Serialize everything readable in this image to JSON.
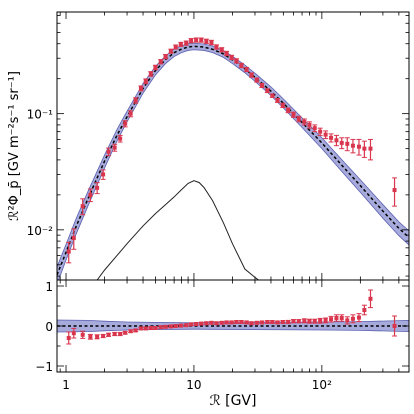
{
  "colors": {
    "data_points": "#d9364e",
    "model_band": "#8a8fd0",
    "model_line": "#000000",
    "component_line": "#222222",
    "axis": "#000000"
  },
  "chart_data": [
    {
      "type": "line",
      "panel": "main",
      "title": "",
      "xlabel": "",
      "ylabel": "ℛ²Φ_p̄ [GV m⁻²s⁻¹ sr⁻¹]",
      "xscale": "log",
      "yscale": "log",
      "xlim": [
        0.85,
        480
      ],
      "ylim": [
        0.0037,
        0.75
      ],
      "ytick_labels": [
        "10⁻²",
        "10⁻¹"
      ],
      "yticks": [
        0.01,
        0.1
      ],
      "grid": false,
      "series": [
        {
          "kind": "band",
          "x": [
            0.85,
            1.0,
            1.2,
            1.5,
            2.0,
            2.5,
            3.0,
            4.0,
            5.0,
            6.0,
            7.0,
            8.0,
            9.0,
            10.0,
            12.0,
            14.0,
            17.0,
            20.0,
            25.0,
            30.0,
            40.0,
            50.0,
            70.0,
            100.0,
            150.0,
            200.0,
            300.0,
            400.0,
            480.0
          ],
          "lower": [
            0.0034,
            0.0055,
            0.0092,
            0.0165,
            0.034,
            0.058,
            0.085,
            0.15,
            0.215,
            0.27,
            0.31,
            0.335,
            0.35,
            0.355,
            0.35,
            0.335,
            0.305,
            0.27,
            0.225,
            0.19,
            0.143,
            0.112,
            0.076,
            0.05,
            0.03,
            0.021,
            0.0126,
            0.0089,
            0.0074
          ],
          "upper": [
            0.0048,
            0.0075,
            0.0125,
            0.022,
            0.044,
            0.073,
            0.105,
            0.182,
            0.255,
            0.315,
            0.36,
            0.385,
            0.4,
            0.405,
            0.398,
            0.382,
            0.35,
            0.312,
            0.262,
            0.223,
            0.17,
            0.134,
            0.092,
            0.062,
            0.038,
            0.027,
            0.0165,
            0.0117,
            0.0098
          ]
        },
        {
          "kind": "line",
          "style": "dashed",
          "x": [
            0.85,
            1.0,
            1.2,
            1.5,
            2.0,
            2.5,
            3.0,
            4.0,
            5.0,
            6.0,
            7.0,
            8.0,
            9.0,
            10.0,
            12.0,
            14.0,
            17.0,
            20.0,
            25.0,
            30.0,
            40.0,
            50.0,
            70.0,
            100.0,
            150.0,
            200.0,
            300.0,
            400.0,
            480.0
          ],
          "y": [
            0.0041,
            0.0064,
            0.0107,
            0.019,
            0.039,
            0.065,
            0.094,
            0.165,
            0.235,
            0.292,
            0.335,
            0.36,
            0.375,
            0.38,
            0.374,
            0.358,
            0.327,
            0.29,
            0.243,
            0.206,
            0.156,
            0.123,
            0.084,
            0.056,
            0.034,
            0.024,
            0.0145,
            0.0103,
            0.0086
          ]
        },
        {
          "kind": "line",
          "style": "solid",
          "x": [
            1.75,
            2.0,
            2.5,
            3.0,
            4.0,
            5.0,
            6.0,
            7.0,
            8.0,
            9.0,
            10.0,
            11.0,
            12.0,
            14.0,
            17.0,
            20.0,
            25.0,
            30.0,
            32.0
          ],
          "y": [
            0.0037,
            0.0045,
            0.006,
            0.0076,
            0.0108,
            0.0138,
            0.0165,
            0.0192,
            0.0222,
            0.0251,
            0.0265,
            0.0255,
            0.0231,
            0.0178,
            0.0115,
            0.0076,
            0.0046,
            0.0039,
            0.0037
          ]
        },
        {
          "kind": "points",
          "x": [
            1.05,
            1.15,
            1.35,
            1.55,
            1.75,
            1.95,
            2.15,
            2.4,
            2.65,
            2.9,
            3.2,
            3.5,
            3.85,
            4.2,
            4.6,
            5.0,
            5.5,
            6.0,
            6.6,
            7.2,
            7.9,
            8.7,
            9.5,
            10.4,
            11.4,
            12.5,
            13.7,
            15.0,
            16.5,
            18.0,
            19.7,
            21.5,
            23.5,
            25.8,
            28.2,
            31.0,
            34.0,
            37.5,
            41.0,
            45.0,
            49.5,
            54.5,
            60.0,
            66.0,
            73.0,
            80.0,
            88.0,
            97.0,
            107.0,
            118.0,
            130.0,
            143.0,
            158.0,
            175.0,
            195.0,
            215.0,
            240.0,
            370.0
          ],
          "y": [
            0.0065,
            0.0085,
            0.016,
            0.02,
            0.023,
            0.03,
            0.047,
            0.051,
            0.061,
            0.082,
            0.1,
            0.13,
            0.165,
            0.19,
            0.22,
            0.25,
            0.28,
            0.31,
            0.345,
            0.375,
            0.395,
            0.405,
            0.425,
            0.43,
            0.43,
            0.42,
            0.41,
            0.375,
            0.355,
            0.33,
            0.305,
            0.285,
            0.26,
            0.24,
            0.215,
            0.195,
            0.175,
            0.158,
            0.143,
            0.13,
            0.118,
            0.107,
            0.098,
            0.09,
            0.085,
            0.08,
            0.075,
            0.07,
            0.066,
            0.062,
            0.059,
            0.056,
            0.055,
            0.053,
            0.052,
            0.05,
            0.05,
            0.022
          ],
          "yerr": [
            0.0013,
            0.0017,
            0.0025,
            0.0025,
            0.0025,
            0.0028,
            0.0035,
            0.0035,
            0.004,
            0.005,
            0.006,
            0.007,
            0.008,
            0.009,
            0.01,
            0.011,
            0.012,
            0.013,
            0.014,
            0.015,
            0.016,
            0.017,
            0.018,
            0.018,
            0.018,
            0.018,
            0.018,
            0.016,
            0.015,
            0.014,
            0.013,
            0.012,
            0.011,
            0.01,
            0.009,
            0.008,
            0.007,
            0.006,
            0.005,
            0.005,
            0.005,
            0.005,
            0.005,
            0.005,
            0.005,
            0.005,
            0.005,
            0.005,
            0.005,
            0.005,
            0.006,
            0.006,
            0.007,
            0.007,
            0.008,
            0.008,
            0.01,
            0.006
          ]
        }
      ]
    },
    {
      "type": "scatter",
      "panel": "residual",
      "title": "",
      "xlabel": "ℛ [GV]",
      "ylabel": "",
      "xscale": "log",
      "yscale": "linear",
      "xlim": [
        0.85,
        480
      ],
      "ylim": [
        -1.15,
        1.15
      ],
      "yticks": [
        -1,
        0,
        1
      ],
      "ytick_labels": [
        "−1",
        "0",
        "1"
      ],
      "xticks": [
        1,
        10,
        100
      ],
      "xtick_labels": [
        "1",
        "10",
        "10²"
      ],
      "grid": false,
      "band": {
        "x": [
          0.85,
          1.5,
          2.0,
          3.0,
          5.0,
          10.0,
          30.0,
          100.0,
          200.0,
          480.0
        ],
        "lower": [
          -0.15,
          -0.14,
          -0.12,
          -0.1,
          -0.09,
          -0.08,
          -0.09,
          -0.1,
          -0.11,
          -0.14
        ],
        "upper": [
          0.15,
          0.14,
          0.12,
          0.1,
          0.09,
          0.08,
          0.09,
          0.1,
          0.11,
          0.14
        ]
      },
      "reference_line": 0,
      "x": [
        1.05,
        1.15,
        1.35,
        1.55,
        1.75,
        1.95,
        2.15,
        2.4,
        2.65,
        2.9,
        3.2,
        3.5,
        3.85,
        4.2,
        4.6,
        5.0,
        5.5,
        6.0,
        6.6,
        7.2,
        7.9,
        8.7,
        9.5,
        10.4,
        11.4,
        12.5,
        13.7,
        15.0,
        16.5,
        18.0,
        19.7,
        21.5,
        23.5,
        25.8,
        28.2,
        31.0,
        34.0,
        37.5,
        41.0,
        45.0,
        49.5,
        54.5,
        60.0,
        66.0,
        73.0,
        80.0,
        88.0,
        97.0,
        107.0,
        118.0,
        130.0,
        143.0,
        158.0,
        175.0,
        195.0,
        215.0,
        240.0,
        370.0
      ],
      "y": [
        -0.3,
        -0.18,
        -0.22,
        -0.27,
        -0.27,
        -0.25,
        -0.22,
        -0.2,
        -0.2,
        -0.17,
        -0.13,
        -0.11,
        -0.06,
        -0.06,
        -0.05,
        -0.05,
        -0.03,
        -0.02,
        -0.01,
        0.0,
        0.01,
        0.02,
        0.04,
        0.05,
        0.06,
        0.07,
        0.08,
        0.07,
        0.08,
        0.09,
        0.09,
        0.1,
        0.1,
        0.09,
        0.07,
        0.08,
        0.09,
        0.1,
        0.1,
        0.09,
        0.1,
        0.1,
        0.12,
        0.12,
        0.13,
        0.12,
        0.12,
        0.13,
        0.14,
        0.17,
        0.2,
        0.2,
        0.14,
        0.18,
        0.21,
        0.4,
        0.68,
        0.0
      ],
      "yerr": [
        0.15,
        0.12,
        0.09,
        0.06,
        0.05,
        0.04,
        0.04,
        0.04,
        0.04,
        0.03,
        0.03,
        0.03,
        0.03,
        0.03,
        0.03,
        0.03,
        0.03,
        0.03,
        0.03,
        0.03,
        0.03,
        0.03,
        0.03,
        0.03,
        0.03,
        0.03,
        0.03,
        0.03,
        0.03,
        0.03,
        0.03,
        0.03,
        0.03,
        0.03,
        0.03,
        0.03,
        0.03,
        0.03,
        0.03,
        0.03,
        0.03,
        0.04,
        0.04,
        0.04,
        0.05,
        0.05,
        0.05,
        0.06,
        0.06,
        0.07,
        0.08,
        0.08,
        0.09,
        0.1,
        0.1,
        0.12,
        0.22,
        0.25
      ]
    }
  ]
}
